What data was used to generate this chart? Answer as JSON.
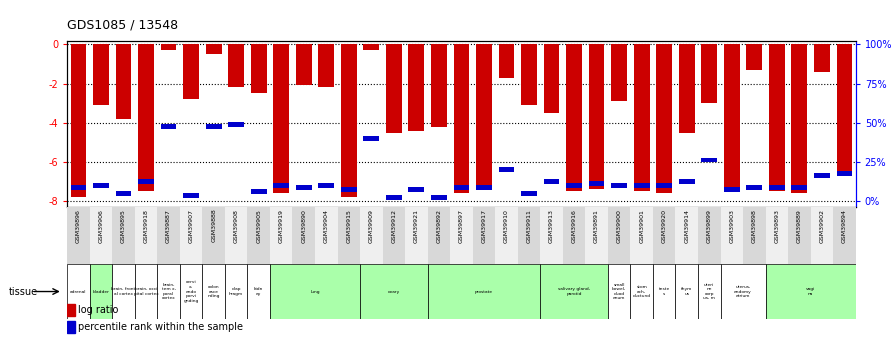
{
  "title": "GDS1085 / 13548",
  "gsm_ids": [
    "GSM39896",
    "GSM39906",
    "GSM39895",
    "GSM39918",
    "GSM39887",
    "GSM39907",
    "GSM39888",
    "GSM39908",
    "GSM39905",
    "GSM39919",
    "GSM39890",
    "GSM39904",
    "GSM39915",
    "GSM39909",
    "GSM39912",
    "GSM39921",
    "GSM39892",
    "GSM39897",
    "GSM39917",
    "GSM39910",
    "GSM39911",
    "GSM39913",
    "GSM39916",
    "GSM39891",
    "GSM39900",
    "GSM39901",
    "GSM39920",
    "GSM39914",
    "GSM39899",
    "GSM39903",
    "GSM39898",
    "GSM39893",
    "GSM39889",
    "GSM39902",
    "GSM39894"
  ],
  "log_ratios": [
    -7.8,
    -3.1,
    -3.8,
    -7.5,
    -0.3,
    -2.8,
    -0.5,
    -2.2,
    -2.5,
    -7.6,
    -2.1,
    -2.2,
    -7.8,
    -0.3,
    -4.5,
    -4.4,
    -4.2,
    -7.6,
    -7.4,
    -1.7,
    -3.1,
    -3.5,
    -7.5,
    -7.4,
    -2.9,
    -7.5,
    -7.6,
    -4.5,
    -3.0,
    -7.5,
    -1.3,
    -7.5,
    -7.6,
    -1.4,
    -6.5
  ],
  "percentile_ranks_y": [
    -7.3,
    -7.2,
    -7.6,
    -7.0,
    -4.2,
    -7.7,
    -4.2,
    -4.1,
    -7.5,
    -7.2,
    -7.3,
    -7.2,
    -7.4,
    -4.8,
    -7.8,
    -7.4,
    -7.8,
    -7.3,
    -7.3,
    -6.4,
    -7.6,
    -7.0,
    -7.2,
    -7.1,
    -7.2,
    -7.2,
    -7.2,
    -7.0,
    -5.9,
    -7.4,
    -7.3,
    -7.3,
    -7.3,
    -6.7,
    -6.6
  ],
  "tissues": [
    {
      "label": "adrenal",
      "start": 0,
      "end": 1,
      "color": "#ffffff"
    },
    {
      "label": "bladder",
      "start": 1,
      "end": 2,
      "color": "#aaffaa"
    },
    {
      "label": "brain, front\nal cortex",
      "start": 2,
      "end": 3,
      "color": "#ffffff"
    },
    {
      "label": "brain, occi\npital cortex",
      "start": 3,
      "end": 4,
      "color": "#ffffff"
    },
    {
      "label": "brain,\ntem x,\nporal\ncortex",
      "start": 4,
      "end": 5,
      "color": "#ffffff"
    },
    {
      "label": "cervi\nx,\nendo\nporvi\ngnding",
      "start": 5,
      "end": 6,
      "color": "#ffffff"
    },
    {
      "label": "colon\nasce\nnding",
      "start": 6,
      "end": 7,
      "color": "#ffffff"
    },
    {
      "label": "diap\nhragm",
      "start": 7,
      "end": 8,
      "color": "#ffffff"
    },
    {
      "label": "kidn\ney",
      "start": 8,
      "end": 9,
      "color": "#ffffff"
    },
    {
      "label": "lung",
      "start": 9,
      "end": 13,
      "color": "#aaffaa"
    },
    {
      "label": "ovary",
      "start": 13,
      "end": 16,
      "color": "#aaffaa"
    },
    {
      "label": "prostate",
      "start": 16,
      "end": 21,
      "color": "#aaffaa"
    },
    {
      "label": "salivary gland,\nparotid",
      "start": 21,
      "end": 24,
      "color": "#aaffaa"
    },
    {
      "label": "small\nbowel,\nduod\nenum",
      "start": 24,
      "end": 25,
      "color": "#ffffff"
    },
    {
      "label": "stom\nach,\nductund",
      "start": 25,
      "end": 26,
      "color": "#ffffff"
    },
    {
      "label": "teste\ns",
      "start": 26,
      "end": 27,
      "color": "#ffffff"
    },
    {
      "label": "thym\nus",
      "start": 27,
      "end": 28,
      "color": "#ffffff"
    },
    {
      "label": "uteri\nne\ncorp\nus, m",
      "start": 28,
      "end": 29,
      "color": "#ffffff"
    },
    {
      "label": "uterus,\nendomy\netrium",
      "start": 29,
      "end": 31,
      "color": "#ffffff"
    },
    {
      "label": "vagi\nna",
      "start": 31,
      "end": 35,
      "color": "#aaffaa"
    }
  ],
  "ylim_min": -8.3,
  "ylim_max": 0.15,
  "yticks": [
    0,
    -2,
    -4,
    -6,
    -8
  ],
  "right_ytick_labels": [
    "100%",
    "75%",
    "50%",
    "25%",
    "0%"
  ],
  "bar_color": "#cc0000",
  "pct_color": "#0000cc",
  "bg_color": "#ffffff"
}
